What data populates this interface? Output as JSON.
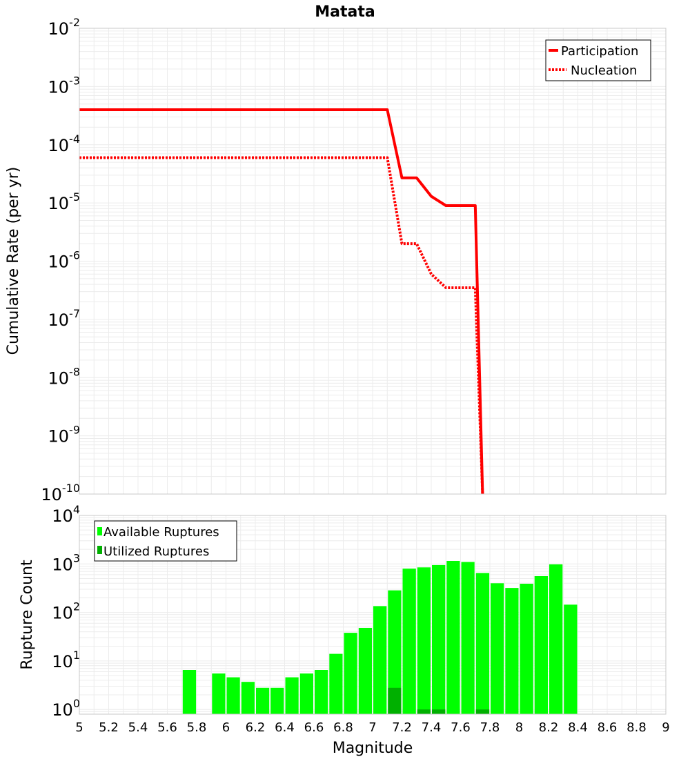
{
  "chart_data": [
    {
      "type": "line",
      "title": "Matata",
      "xlabel": "",
      "ylabel": "Cumulative Rate (per yr)",
      "xlim": [
        5,
        9
      ],
      "ylim": [
        1e-10,
        0.01
      ],
      "yscale": "log",
      "grid": true,
      "legend_placement": "top-right",
      "series": [
        {
          "name": "Participation",
          "style": "solid",
          "color": "#ff0000",
          "x": [
            5.0,
            7.1,
            7.2,
            7.3,
            7.4,
            7.5,
            7.6,
            7.7,
            7.75
          ],
          "y": [
            0.0004,
            0.0004,
            2.7e-05,
            2.7e-05,
            1.3e-05,
            9e-06,
            9e-06,
            9e-06,
            1e-10
          ]
        },
        {
          "name": "Nucleation",
          "style": "dotted",
          "color": "#ff0000",
          "x": [
            5.0,
            7.1,
            7.2,
            7.3,
            7.4,
            7.5,
            7.6,
            7.7,
            7.75
          ],
          "y": [
            6e-05,
            6e-05,
            2e-06,
            2e-06,
            6e-07,
            3.5e-07,
            3.5e-07,
            3.5e-07,
            1e-10
          ]
        }
      ],
      "y_ticks": [
        {
          "mantissa": "10",
          "exp": "-2"
        },
        {
          "mantissa": "10",
          "exp": "-3"
        },
        {
          "mantissa": "10",
          "exp": "-4"
        },
        {
          "mantissa": "10",
          "exp": "-5"
        },
        {
          "mantissa": "10",
          "exp": "-6"
        },
        {
          "mantissa": "10",
          "exp": "-7"
        },
        {
          "mantissa": "10",
          "exp": "-8"
        },
        {
          "mantissa": "10",
          "exp": "-9"
        },
        {
          "mantissa": "10",
          "exp": "-10"
        }
      ]
    },
    {
      "type": "bar",
      "title": "",
      "xlabel": "Magnitude",
      "ylabel": "Rupture Count",
      "xlim": [
        5,
        9
      ],
      "ylim": [
        0.8,
        10000
      ],
      "yscale": "log",
      "grid": true,
      "legend_placement": "top-left",
      "bar_width": 0.1,
      "series": [
        {
          "name": "Available Ruptures",
          "color": "#00ff00",
          "x": [
            5.75,
            5.95,
            6.05,
            6.15,
            6.25,
            6.35,
            6.45,
            6.55,
            6.65,
            6.75,
            6.85,
            6.95,
            7.05,
            7.15,
            7.25,
            7.35,
            7.45,
            7.55,
            7.65,
            7.75,
            7.85,
            7.95,
            8.05,
            8.15,
            8.25,
            8.35
          ],
          "values": [
            6.5,
            5.5,
            4.6,
            3.7,
            2.8,
            2.8,
            4.6,
            5.5,
            6.5,
            14,
            38,
            48,
            135,
            285,
            800,
            850,
            950,
            1150,
            1100,
            650,
            400,
            320,
            390,
            560,
            980,
            145
          ]
        },
        {
          "name": "Utilized Ruptures",
          "color": "#00b000",
          "x": [
            7.15,
            7.35,
            7.45,
            7.75
          ],
          "values": [
            2.8,
            1,
            1,
            1
          ]
        }
      ],
      "x_ticks": [
        "5",
        "5.2",
        "5.4",
        "5.6",
        "5.8",
        "6",
        "6.2",
        "6.4",
        "6.6",
        "6.8",
        "7",
        "7.2",
        "7.4",
        "7.6",
        "7.8",
        "8",
        "8.2",
        "8.4",
        "8.6",
        "8.8",
        "9"
      ],
      "y_ticks": [
        {
          "mantissa": "10",
          "exp": "0"
        },
        {
          "mantissa": "10",
          "exp": "1"
        },
        {
          "mantissa": "10",
          "exp": "2"
        },
        {
          "mantissa": "10",
          "exp": "3"
        },
        {
          "mantissa": "10",
          "exp": "4"
        }
      ]
    }
  ]
}
